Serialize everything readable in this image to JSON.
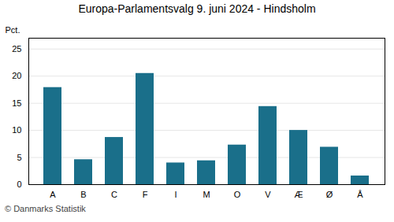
{
  "chart_data": {
    "type": "bar",
    "title": "Europa-Parlamentsvalg 9. juni 2024 - Hindsholm",
    "ylabel": "Pct.",
    "caption": "© Danmarks Statistik",
    "categories": [
      "A",
      "B",
      "C",
      "F",
      "I",
      "M",
      "O",
      "V",
      "Æ",
      "Ø",
      "Å"
    ],
    "values": [
      17.9,
      4.6,
      8.7,
      20.5,
      4.0,
      4.4,
      7.3,
      14.4,
      10.0,
      6.9,
      1.6
    ],
    "color": "#1a6f8a",
    "ylim": [
      0,
      27
    ],
    "yticks": [
      0,
      5,
      10,
      15,
      20,
      25
    ],
    "grid": true
  }
}
